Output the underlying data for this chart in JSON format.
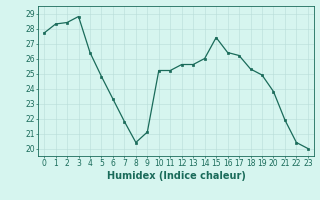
{
  "x": [
    0,
    1,
    2,
    3,
    4,
    5,
    6,
    7,
    8,
    9,
    10,
    11,
    12,
    13,
    14,
    15,
    16,
    17,
    18,
    19,
    20,
    21,
    22,
    23
  ],
  "y": [
    27.7,
    28.3,
    28.4,
    28.8,
    26.4,
    24.8,
    23.3,
    21.8,
    20.4,
    21.1,
    25.2,
    25.2,
    25.6,
    25.6,
    26.0,
    27.4,
    26.4,
    26.2,
    25.3,
    24.9,
    23.8,
    21.9,
    20.4,
    20.0
  ],
  "line_color": "#1a6b5a",
  "marker": "s",
  "markersize": 2.0,
  "linewidth": 0.9,
  "xlabel": "Humidex (Indice chaleur)",
  "xlim": [
    -0.5,
    23.5
  ],
  "ylim": [
    19.5,
    29.5
  ],
  "yticks": [
    20,
    21,
    22,
    23,
    24,
    25,
    26,
    27,
    28,
    29
  ],
  "xticks": [
    0,
    1,
    2,
    3,
    4,
    5,
    6,
    7,
    8,
    9,
    10,
    11,
    12,
    13,
    14,
    15,
    16,
    17,
    18,
    19,
    20,
    21,
    22,
    23
  ],
  "background_color": "#d6f5ef",
  "grid_color": "#b8ddd8",
  "line_grid_color": "#c8e8e2",
  "tick_label_color": "#1a6b5a",
  "xlabel_fontsize": 7.0,
  "tick_fontsize": 5.5
}
